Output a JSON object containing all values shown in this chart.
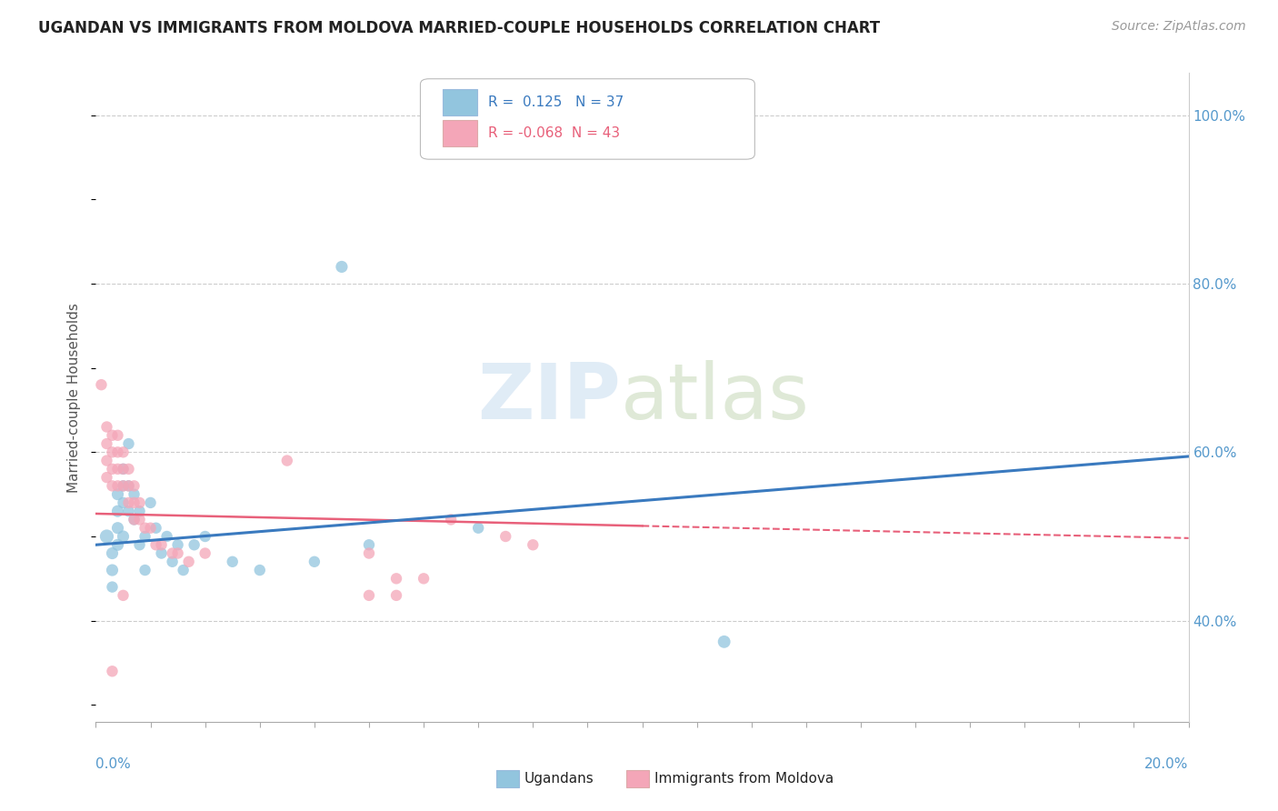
{
  "title": "UGANDAN VS IMMIGRANTS FROM MOLDOVA MARRIED-COUPLE HOUSEHOLDS CORRELATION CHART",
  "source": "Source: ZipAtlas.com",
  "ylabel": "Married-couple Households",
  "ytick_labels": [
    "40.0%",
    "60.0%",
    "80.0%",
    "100.0%"
  ],
  "ytick_vals": [
    0.4,
    0.6,
    0.8,
    1.0
  ],
  "xlim": [
    0.0,
    0.2
  ],
  "ylim": [
    0.28,
    1.05
  ],
  "blue_color": "#92c5de",
  "pink_color": "#f4a6b8",
  "blue_line_color": "#3a7abf",
  "pink_line_color": "#e8607a",
  "legend_R_blue": "R =  0.125",
  "legend_N_blue": "N = 37",
  "legend_R_pink": "R = -0.068",
  "legend_N_pink": "N = 43",
  "blue_scatter": [
    [
      0.002,
      0.5
    ],
    [
      0.003,
      0.48
    ],
    [
      0.003,
      0.46
    ],
    [
      0.003,
      0.44
    ],
    [
      0.004,
      0.49
    ],
    [
      0.004,
      0.51
    ],
    [
      0.004,
      0.53
    ],
    [
      0.004,
      0.55
    ],
    [
      0.005,
      0.5
    ],
    [
      0.005,
      0.54
    ],
    [
      0.005,
      0.56
    ],
    [
      0.005,
      0.58
    ],
    [
      0.006,
      0.53
    ],
    [
      0.006,
      0.56
    ],
    [
      0.006,
      0.61
    ],
    [
      0.007,
      0.55
    ],
    [
      0.007,
      0.52
    ],
    [
      0.008,
      0.49
    ],
    [
      0.008,
      0.53
    ],
    [
      0.009,
      0.46
    ],
    [
      0.009,
      0.5
    ],
    [
      0.01,
      0.54
    ],
    [
      0.011,
      0.51
    ],
    [
      0.012,
      0.48
    ],
    [
      0.013,
      0.5
    ],
    [
      0.014,
      0.47
    ],
    [
      0.015,
      0.49
    ],
    [
      0.016,
      0.46
    ],
    [
      0.018,
      0.49
    ],
    [
      0.02,
      0.5
    ],
    [
      0.025,
      0.47
    ],
    [
      0.03,
      0.46
    ],
    [
      0.04,
      0.47
    ],
    [
      0.05,
      0.49
    ],
    [
      0.07,
      0.51
    ],
    [
      0.115,
      0.375
    ],
    [
      0.045,
      0.82
    ]
  ],
  "pink_scatter": [
    [
      0.001,
      0.68
    ],
    [
      0.002,
      0.63
    ],
    [
      0.002,
      0.61
    ],
    [
      0.002,
      0.59
    ],
    [
      0.002,
      0.57
    ],
    [
      0.003,
      0.62
    ],
    [
      0.003,
      0.6
    ],
    [
      0.003,
      0.58
    ],
    [
      0.003,
      0.56
    ],
    [
      0.004,
      0.62
    ],
    [
      0.004,
      0.6
    ],
    [
      0.004,
      0.58
    ],
    [
      0.004,
      0.56
    ],
    [
      0.005,
      0.6
    ],
    [
      0.005,
      0.58
    ],
    [
      0.005,
      0.56
    ],
    [
      0.006,
      0.58
    ],
    [
      0.006,
      0.56
    ],
    [
      0.006,
      0.54
    ],
    [
      0.007,
      0.56
    ],
    [
      0.007,
      0.54
    ],
    [
      0.007,
      0.52
    ],
    [
      0.008,
      0.54
    ],
    [
      0.008,
      0.52
    ],
    [
      0.009,
      0.51
    ],
    [
      0.01,
      0.51
    ],
    [
      0.011,
      0.49
    ],
    [
      0.012,
      0.49
    ],
    [
      0.014,
      0.48
    ],
    [
      0.015,
      0.48
    ],
    [
      0.017,
      0.47
    ],
    [
      0.02,
      0.48
    ],
    [
      0.035,
      0.59
    ],
    [
      0.05,
      0.48
    ],
    [
      0.055,
      0.45
    ],
    [
      0.06,
      0.45
    ],
    [
      0.065,
      0.52
    ],
    [
      0.075,
      0.5
    ],
    [
      0.08,
      0.49
    ],
    [
      0.003,
      0.34
    ],
    [
      0.005,
      0.43
    ],
    [
      0.05,
      0.43
    ],
    [
      0.055,
      0.43
    ]
  ],
  "blue_sizes": [
    120,
    90,
    90,
    80,
    90,
    90,
    90,
    90,
    90,
    80,
    80,
    80,
    80,
    80,
    80,
    80,
    80,
    80,
    80,
    80,
    80,
    80,
    80,
    80,
    80,
    80,
    80,
    80,
    80,
    80,
    80,
    80,
    80,
    80,
    80,
    100,
    90
  ],
  "pink_sizes": [
    80,
    80,
    80,
    80,
    80,
    80,
    80,
    80,
    80,
    80,
    80,
    80,
    80,
    80,
    80,
    80,
    80,
    80,
    80,
    80,
    80,
    80,
    80,
    80,
    80,
    80,
    80,
    80,
    80,
    80,
    80,
    80,
    80,
    80,
    80,
    80,
    80,
    80,
    80,
    80,
    80,
    80,
    80
  ]
}
